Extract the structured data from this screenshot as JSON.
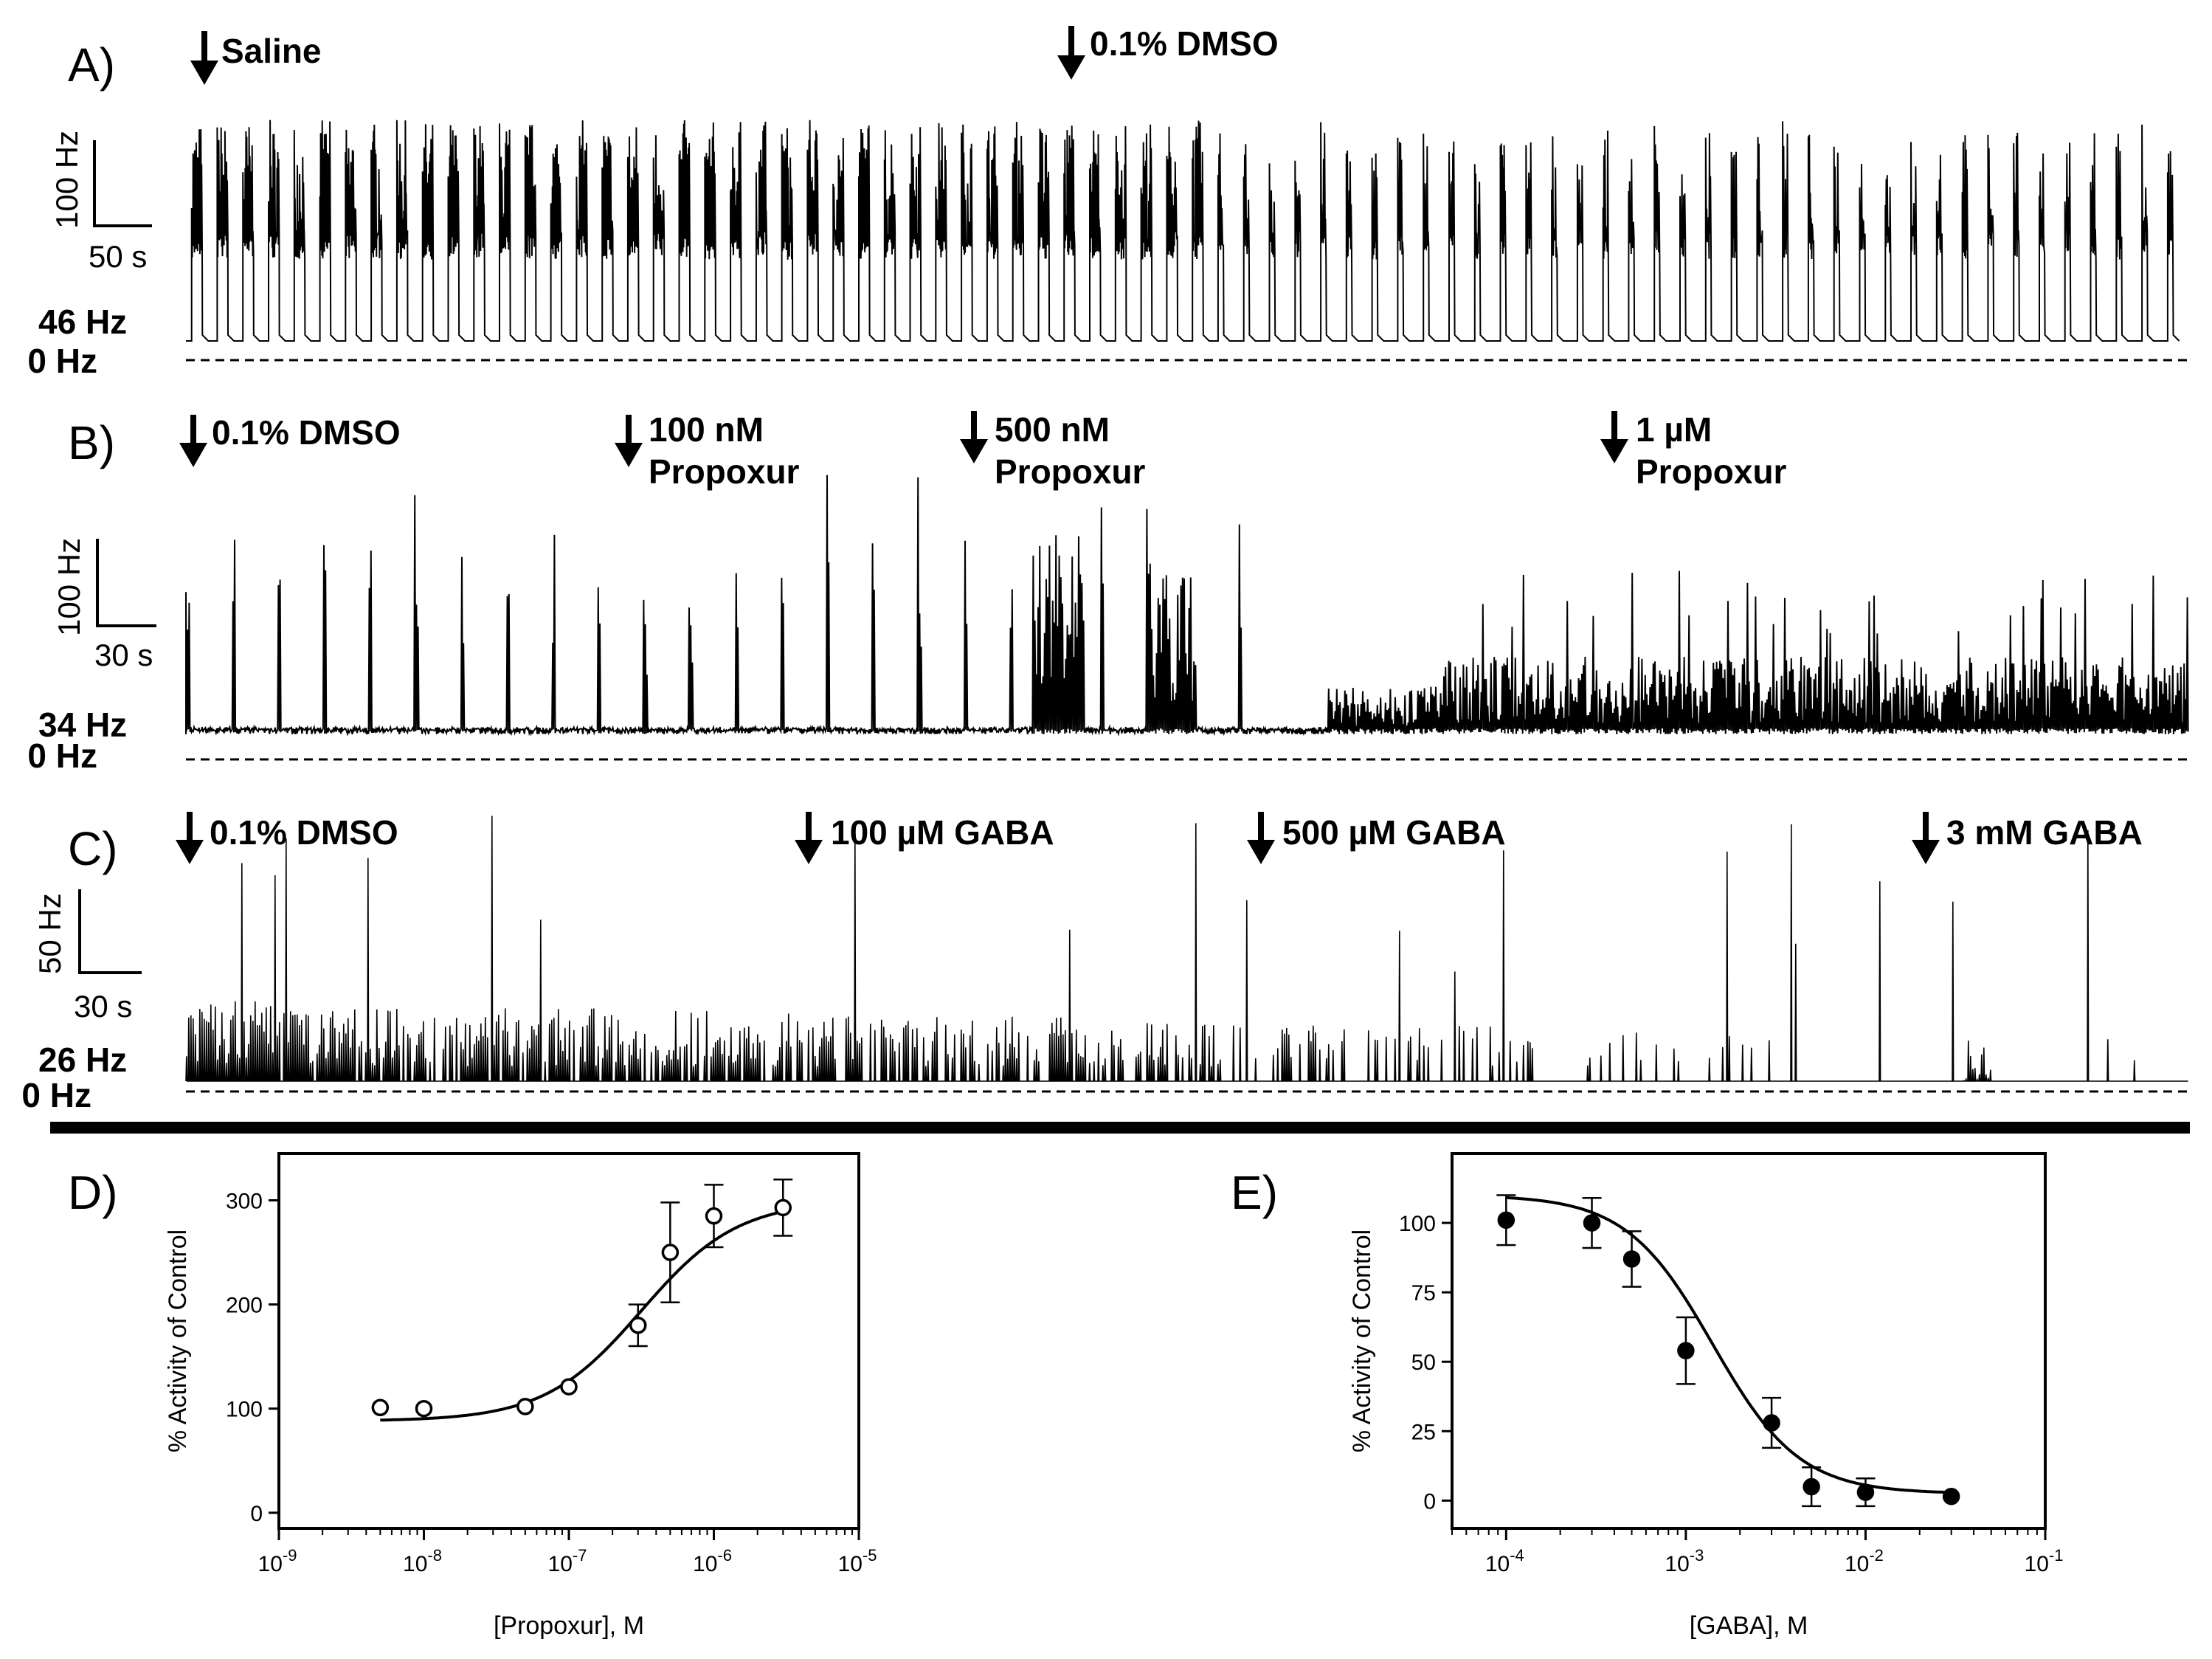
{
  "traces": [
    {
      "label": "A)",
      "scale_y": "100 Hz",
      "scale_x": "50 s",
      "baseline": "46 Hz",
      "zero": "0 Hz",
      "events": [
        {
          "lines": [
            "Saline"
          ]
        },
        {
          "lines": [
            "0.1% DMSO"
          ]
        }
      ]
    },
    {
      "label": "B)",
      "scale_y": "100 Hz",
      "scale_x": "30 s",
      "baseline": "34 Hz",
      "zero": "0 Hz",
      "events": [
        {
          "lines": [
            "0.1% DMSO"
          ]
        },
        {
          "lines": [
            "100 nM",
            "Propoxur"
          ]
        },
        {
          "lines": [
            "500 nM",
            "Propoxur"
          ]
        },
        {
          "lines": [
            "1 µM",
            "Propoxur"
          ]
        }
      ]
    },
    {
      "label": "C)",
      "scale_y": "50 Hz",
      "scale_x": "30 s",
      "baseline": "26 Hz",
      "zero": "0 Hz",
      "events": [
        {
          "lines": [
            "0.1% DMSO"
          ]
        },
        {
          "lines": [
            "100 µM GABA"
          ]
        },
        {
          "lines": [
            "500 µM GABA"
          ]
        },
        {
          "lines": [
            "3 mM GABA"
          ]
        }
      ]
    }
  ],
  "chart_data": [
    {
      "type": "scatter",
      "panel": "D)",
      "title": "",
      "xlabel": "[Propoxur], M",
      "ylabel": "% Activity of Control",
      "xscale": "log",
      "xlim": [
        1e-09,
        1e-05
      ],
      "ylim": [
        -15,
        345
      ],
      "xticks": [
        {
          "base": "10",
          "exp": "-9"
        },
        {
          "base": "10",
          "exp": "-8"
        },
        {
          "base": "10",
          "exp": "-7"
        },
        {
          "base": "10",
          "exp": "-6"
        },
        {
          "base": "10",
          "exp": "-5"
        }
      ],
      "xtick_values": [
        1e-09,
        1e-08,
        1e-07,
        1e-06,
        1e-05
      ],
      "yticks": [
        "0",
        "100",
        "200",
        "300"
      ],
      "ytick_values": [
        0,
        100,
        200,
        300
      ],
      "marker": "open-circle",
      "series": [
        {
          "name": "Propoxur",
          "x": [
            5e-09,
            1e-08,
            5e-08,
            1e-07,
            3e-07,
            5e-07,
            1e-06,
            3e-06
          ],
          "y": [
            101,
            100,
            102,
            121,
            180,
            250,
            285,
            293
          ],
          "err": [
            0,
            0,
            0,
            0,
            20,
            48,
            30,
            27
          ]
        }
      ],
      "fit": {
        "bottom": 88,
        "top": 300,
        "log_ec50": -6.5,
        "hill": 1.3,
        "x_from": 5e-09,
        "x_to": 3e-06
      }
    },
    {
      "type": "scatter",
      "panel": "E)",
      "title": "",
      "xlabel": "[GABA], M",
      "ylabel": "% Activity of Control",
      "xscale": "log",
      "xlim": [
        5e-05,
        0.1
      ],
      "ylim": [
        -10,
        125
      ],
      "xticks": [
        {
          "base": "10",
          "exp": "-4"
        },
        {
          "base": "10",
          "exp": "-3"
        },
        {
          "base": "10",
          "exp": "-2"
        },
        {
          "base": "10",
          "exp": "-1"
        }
      ],
      "xtick_values": [
        0.0001,
        0.001,
        0.01,
        0.1
      ],
      "yticks": [
        "0",
        "25",
        "50",
        "75",
        "100"
      ],
      "ytick_values": [
        0,
        25,
        50,
        75,
        100
      ],
      "marker": "filled-circle",
      "series": [
        {
          "name": "GABA",
          "x": [
            0.0001,
            0.0003,
            0.0005,
            0.001,
            0.003,
            0.005,
            0.01,
            0.03
          ],
          "y": [
            101,
            100,
            87,
            54,
            28,
            5,
            3,
            1.5
          ],
          "err": [
            9,
            9,
            10,
            12,
            9,
            7,
            5,
            0
          ]
        }
      ],
      "fit": {
        "bottom": 2.5,
        "top": 110,
        "log_ic50": -2.85,
        "hill": -1.8,
        "x_from": 0.0001,
        "x_to": 0.03
      }
    }
  ]
}
